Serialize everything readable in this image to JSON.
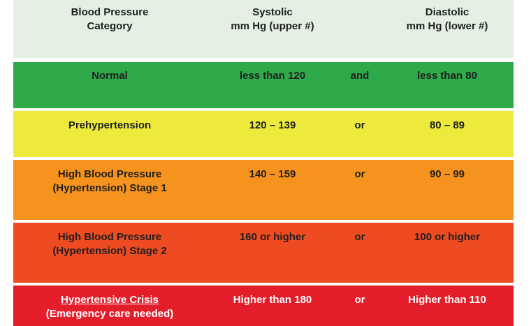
{
  "header": {
    "category_line1": "Blood Pressure",
    "category_line2": "Category",
    "systolic_line1": "Systolic",
    "systolic_line2": "mm Hg (upper #)",
    "diastolic_line1": "Diastolic",
    "diastolic_line2": "mm Hg (lower #)"
  },
  "rows": [
    {
      "category_line1": "Normal",
      "category_line2": "",
      "systolic": "less than 120",
      "conjunction": "and",
      "diastolic": "less than 80",
      "color": "#2eaa4a"
    },
    {
      "category_line1": "Prehypertension",
      "category_line2": "",
      "systolic": "120 – 139",
      "conjunction": "or",
      "diastolic": "80 – 89",
      "color": "#eeea3b"
    },
    {
      "category_line1": "High Blood Pressure",
      "category_line2": "(Hypertension) Stage 1",
      "systolic": "140 – 159",
      "conjunction": "or",
      "diastolic": "90 – 99",
      "color": "#f6921e"
    },
    {
      "category_line1": "High Blood Pressure",
      "category_line2": "(Hypertension) Stage 2",
      "systolic": "160 or higher",
      "conjunction": "or",
      "diastolic": "100 or higher",
      "color": "#ef4b23"
    },
    {
      "category_line1": "Hypertensive Crisis",
      "category_line2": "(Emergency care needed)",
      "systolic": "Higher than 180",
      "conjunction": "or",
      "diastolic": "Higher than 110",
      "color": "#e41d2a"
    }
  ]
}
